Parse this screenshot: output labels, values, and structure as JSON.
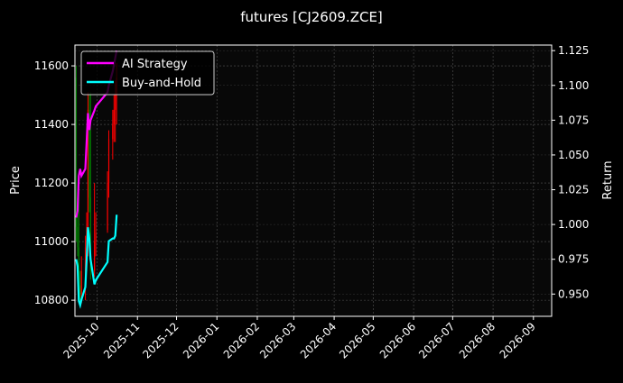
{
  "chart_data": {
    "type": "candlestick+line",
    "title": "futures [CJ2609.ZCE]",
    "ylabel_left": "Price",
    "ylabel_right": "Return",
    "xlim": [
      "2025-09-14",
      "2026-09-15"
    ],
    "ylim_left": [
      10745,
      11671
    ],
    "ylim_right": [
      0.934,
      1.129
    ],
    "grid": true,
    "legend_placement": "upper-left",
    "colors": {
      "background": "#000000",
      "axes": "#080808",
      "up": "#ff0000",
      "down": "#008000",
      "ai": "#ff00ff",
      "bh": "#00ffff",
      "grid": "#555555"
    },
    "x_ticks": [
      "2025-10-01",
      "2025-11-01",
      "2025-12-01",
      "2026-01-01",
      "2026-02-01",
      "2026-03-01",
      "2026-04-01",
      "2026-05-01",
      "2026-06-01",
      "2026-07-01",
      "2026-08-01",
      "2026-09-01"
    ],
    "x_tick_labels": [
      "2025-10",
      "2025-11",
      "2025-12",
      "2026-01",
      "2026-02",
      "2026-03",
      "2026-04",
      "2026-05",
      "2026-06",
      "2026-07",
      "2026-08",
      "2026-09"
    ],
    "y_ticks_left": [
      10800,
      11000,
      11200,
      11400,
      11600
    ],
    "y_ticks_right": [
      0.95,
      0.975,
      1.0,
      1.025,
      1.05,
      1.075,
      1.1,
      1.125
    ],
    "dates": [
      "2025-09-15",
      "2025-09-16",
      "2025-09-17",
      "2025-09-18",
      "2025-09-19",
      "2025-09-22",
      "2025-09-23",
      "2025-09-24",
      "2025-09-25",
      "2025-09-26",
      "2025-09-29",
      "2025-09-30",
      "2025-10-09",
      "2025-10-10",
      "2025-10-13",
      "2025-10-14",
      "2025-10-15",
      "2025-10-16"
    ],
    "ohlc": [
      [
        11560,
        11600,
        11000,
        11050
      ],
      [
        11050,
        11150,
        10950,
        10980
      ],
      [
        10980,
        11240,
        10810,
        10850
      ],
      [
        10850,
        10900,
        10790,
        10820
      ],
      [
        10820,
        10950,
        10790,
        10900
      ],
      [
        10900,
        11020,
        10800,
        10980
      ],
      [
        10980,
        11100,
        10900,
        11050
      ],
      [
        11050,
        11510,
        10950,
        11450
      ],
      [
        11450,
        11500,
        11100,
        11150
      ],
      [
        11150,
        11510,
        10870,
        10900
      ],
      [
        10900,
        11200,
        10880,
        11000
      ],
      [
        11000,
        11100,
        10950,
        11030
      ],
      [
        11040,
        11240,
        11030,
        11200
      ],
      [
        11200,
        11380,
        11150,
        11350
      ],
      [
        11350,
        11450,
        11280,
        11400
      ],
      [
        11400,
        11500,
        11340,
        11450
      ],
      [
        11450,
        11550,
        11340,
        11500
      ],
      [
        11500,
        11610,
        11400,
        11560
      ]
    ],
    "series": [
      {
        "name": "AI Strategy",
        "values": [
          1.005,
          1.01,
          1.035,
          1.04,
          1.035,
          1.04,
          1.06,
          1.08,
          1.068,
          1.075,
          1.082,
          1.085,
          1.095,
          1.1,
          1.11,
          1.115,
          1.12,
          1.125
        ]
      },
      {
        "name": "Buy-and-Hold",
        "values": [
          0.975,
          0.97,
          0.945,
          0.942,
          0.946,
          0.955,
          0.975,
          0.998,
          0.99,
          0.975,
          0.957,
          0.96,
          0.973,
          0.988,
          0.99,
          0.99,
          0.992,
          1.007
        ]
      }
    ]
  }
}
